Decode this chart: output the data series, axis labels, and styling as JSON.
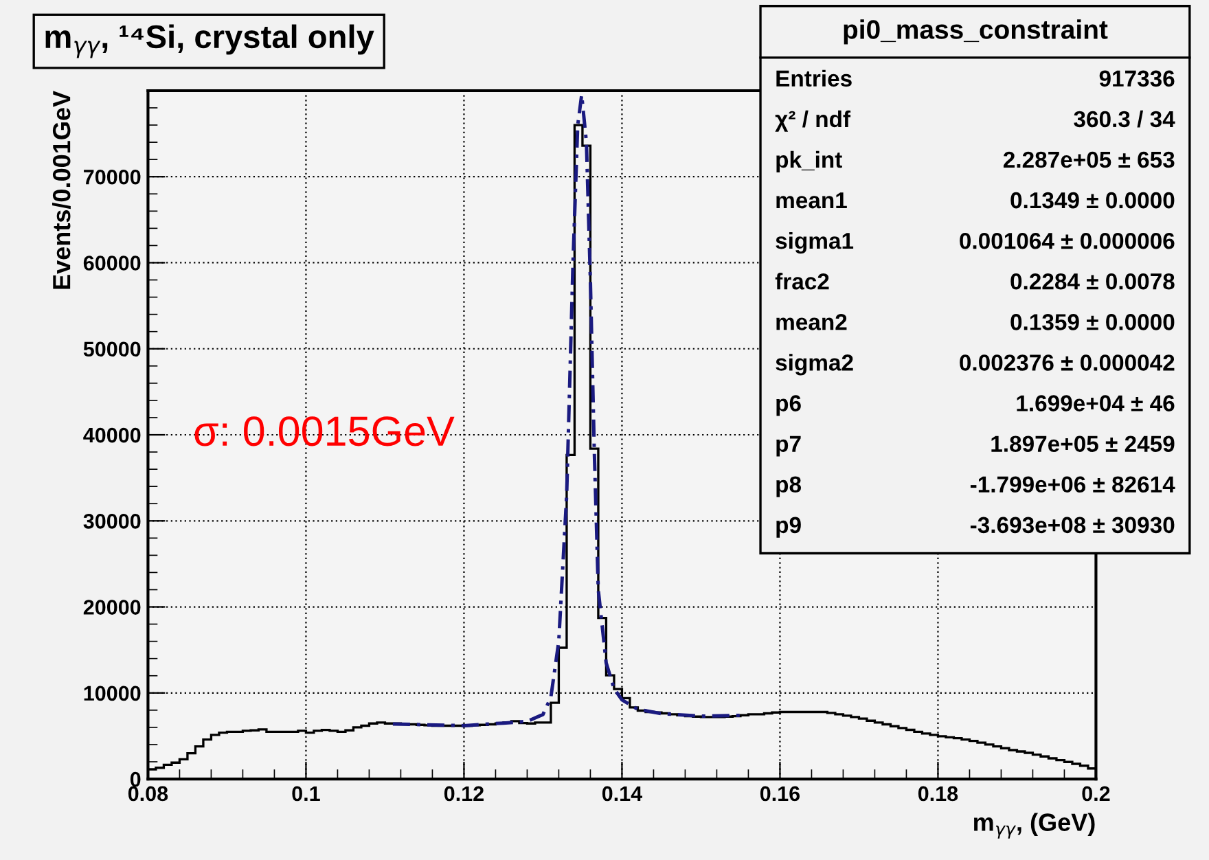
{
  "chart_data": {
    "type": "histogram",
    "title": "m$_{γγ}$, ¹⁴Si, crystal only",
    "xlabel": "m$_{γγ}$, (GeV)",
    "ylabel": "Events/0.001GeV",
    "bins": [
      0.08,
      0.081,
      0.082,
      0.083,
      0.084,
      0.085,
      0.086,
      0.087,
      0.088,
      0.089,
      0.09,
      0.091,
      0.092,
      0.093,
      0.094,
      0.095,
      0.096,
      0.097,
      0.098,
      0.099,
      0.1,
      0.101,
      0.102,
      0.103,
      0.104,
      0.105,
      0.106,
      0.107,
      0.108,
      0.109,
      0.11,
      0.111,
      0.112,
      0.113,
      0.114,
      0.115,
      0.116,
      0.117,
      0.118,
      0.119,
      0.12,
      0.121,
      0.122,
      0.123,
      0.124,
      0.125,
      0.126,
      0.127,
      0.128,
      0.129,
      0.13,
      0.131,
      0.132,
      0.133,
      0.134,
      0.135,
      0.136,
      0.137,
      0.138,
      0.139,
      0.14,
      0.141,
      0.142,
      0.143,
      0.144,
      0.145,
      0.146,
      0.147,
      0.148,
      0.149,
      0.15,
      0.151,
      0.152,
      0.153,
      0.154,
      0.155,
      0.156,
      0.157,
      0.158,
      0.159,
      0.16,
      0.161,
      0.162,
      0.163,
      0.164,
      0.165,
      0.166,
      0.167,
      0.168,
      0.169,
      0.17,
      0.171,
      0.172,
      0.173,
      0.174,
      0.175,
      0.176,
      0.177,
      0.178,
      0.179,
      0.18,
      0.181,
      0.182,
      0.183,
      0.184,
      0.185,
      0.186,
      0.187,
      0.188,
      0.189,
      0.19,
      0.191,
      0.192,
      0.193,
      0.194,
      0.195,
      0.196,
      0.197,
      0.198,
      0.199,
      0.2
    ],
    "series": [
      {
        "color": "#000000",
        "values": [
          1120,
          1300,
          1650,
          1900,
          2290,
          2990,
          3790,
          4590,
          5120,
          5390,
          5490,
          5490,
          5600,
          5650,
          5760,
          5490,
          5490,
          5490,
          5490,
          5600,
          5390,
          5600,
          5700,
          5600,
          5490,
          5650,
          6000,
          6190,
          6450,
          6560,
          6450,
          6450,
          6400,
          6350,
          6290,
          6240,
          6190,
          6190,
          6190,
          6190,
          6190,
          6240,
          6290,
          6350,
          6450,
          6560,
          6720,
          6500,
          6450,
          6560,
          6560,
          8850,
          15250,
          37650,
          76000,
          73600,
          38400,
          18720,
          12050,
          10450,
          9390,
          8320,
          7950,
          7790,
          7730,
          7630,
          7520,
          7410,
          7300,
          7250,
          7200,
          7200,
          7200,
          7250,
          7300,
          7410,
          7520,
          7520,
          7630,
          7730,
          7790,
          7790,
          7790,
          7790,
          7790,
          7790,
          7680,
          7520,
          7360,
          7200,
          7020,
          6770,
          6560,
          6350,
          6130,
          5920,
          5710,
          5490,
          5280,
          5120,
          4960,
          4850,
          4750,
          4590,
          4430,
          4220,
          4000,
          3790,
          3580,
          3360,
          3200,
          3040,
          2830,
          2620,
          2400,
          2190,
          1980,
          1760,
          1540,
          1220
        ]
      },
      {
        "type": "line",
        "color": "#1a1a80",
        "line_style": "dashed",
        "x": [
          0.111,
          0.115,
          0.12,
          0.125,
          0.128,
          0.13,
          0.131,
          0.132,
          0.133,
          0.1338,
          0.1344,
          0.1349,
          0.1355,
          0.136,
          0.1365,
          0.137,
          0.138,
          0.139,
          0.14,
          0.142,
          0.145,
          0.15,
          0.155
        ],
        "values": [
          6400,
          6300,
          6200,
          6500,
          6700,
          7500,
          9500,
          16000,
          33000,
          60000,
          76000,
          79500,
          74000,
          58000,
          38000,
          22000,
          13500,
          10500,
          9200,
          8100,
          7600,
          7300,
          7400
        ]
      }
    ],
    "xlim": [
      0.08,
      0.2
    ],
    "ylim": [
      0,
      80000
    ],
    "xticks": [
      0.08,
      0.1,
      0.12,
      0.14,
      0.16,
      0.18,
      0.2
    ],
    "yticks": [
      0,
      10000,
      20000,
      30000,
      40000,
      50000,
      60000,
      70000
    ],
    "grid": true,
    "annotations": [
      "σ: 0.0015GeV",
      "pi0_mass_constraint",
      "Entries",
      "917336",
      "χ² / ndf",
      "360.3 / 34",
      "pk_int",
      "2.287e+05 ± 653",
      "mean1",
      "0.1349 ± 0.0000",
      "sigma1",
      "0.001064 ± 0.000006",
      "frac2",
      "0.2284 ± 0.0078",
      "mean2",
      "0.1359 ± 0.0000",
      "sigma2",
      "0.002376 ± 0.000042",
      "p6",
      "1.699e+04 ± 46",
      "p7",
      "1.897e+05 ± 2459",
      "p8",
      "-1.799e+06 ± 82614",
      "p9",
      "-3.693e+08 ± 30930"
    ]
  }
}
